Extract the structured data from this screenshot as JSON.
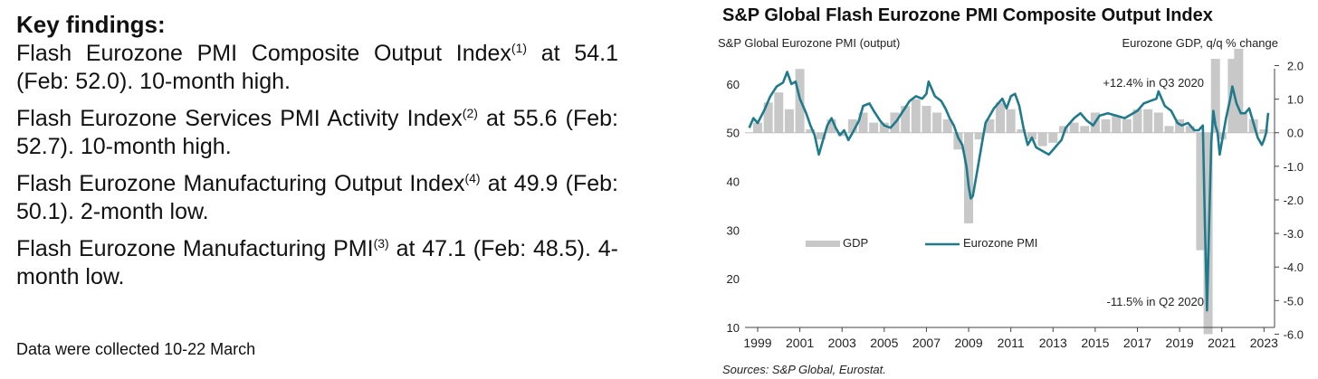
{
  "findings": {
    "heading": "Key findings:",
    "items": [
      {
        "text": "Flash Eurozone PMI Composite Output Index",
        "sup": "(1)",
        "rest": " at 54.1 (Feb: 52.0). 10-month high."
      },
      {
        "text": "Flash Eurozone Services PMI Activity Index",
        "sup": "(2)",
        "rest": " at 55.6 (Feb: 52.7). 10-month high."
      },
      {
        "text": "Flash Eurozone Manufacturing Output Index",
        "sup": "(4)",
        "rest": " at 49.9 (Feb: 50.1). 2-month low."
      },
      {
        "text": "Flash Eurozone Manufacturing PMI",
        "sup": "(3)",
        "rest": " at 47.1 (Feb: 48.5). 4-month low."
      }
    ],
    "note": "Data were collected 10-22 March"
  },
  "chart_data": {
    "type": "line+bar",
    "title": "S&P Global Flash Eurozone PMI Composite Output Index",
    "left_axis_label": "S&P Global  Eurozone PMI (output)",
    "right_axis_label": "Eurozone  GDP, q/q % change",
    "left_ylim": [
      10,
      65
    ],
    "left_ticks": [
      "10",
      "20",
      "30",
      "40",
      "50",
      "60"
    ],
    "right_ylim": [
      -6.0,
      2.5
    ],
    "right_ticks": [
      "-6.0",
      "-5.0",
      "-4.0",
      "-3.0",
      "-2.0",
      "-1.0",
      "0.0",
      "1.0",
      "2.0"
    ],
    "x_ticks": [
      "1999",
      "2001",
      "2003",
      "2005",
      "2007",
      "2009",
      "2011",
      "2013",
      "2015",
      "2017",
      "2019",
      "2021",
      "2023"
    ],
    "legend": {
      "gdp": "GDP",
      "pmi": "Eurozone PMI"
    },
    "annotations": {
      "high": "+12.4% in Q3 2020",
      "low": "-11.5% in Q2 2020"
    },
    "source": "Sources: S&P Global, Eurostat.",
    "colors": {
      "pmi": "#1f7a8c",
      "gdp": "#c8c8c8"
    },
    "pmi_series": [
      [
        1998.6,
        51.0
      ],
      [
        1998.8,
        53.0
      ],
      [
        1999.0,
        52.0
      ],
      [
        1999.3,
        54.5
      ],
      [
        1999.6,
        57.5
      ],
      [
        1999.9,
        59.5
      ],
      [
        2000.2,
        60.3
      ],
      [
        2000.4,
        62.5
      ],
      [
        2000.6,
        60.0
      ],
      [
        2000.8,
        60.5
      ],
      [
        2001.0,
        57.0
      ],
      [
        2001.3,
        54.0
      ],
      [
        2001.5,
        51.5
      ],
      [
        2001.7,
        49.5
      ],
      [
        2001.9,
        45.5
      ],
      [
        2002.1,
        48.5
      ],
      [
        2002.3,
        51.5
      ],
      [
        2002.5,
        53.0
      ],
      [
        2002.7,
        51.0
      ],
      [
        2002.9,
        49.5
      ],
      [
        2003.1,
        50.5
      ],
      [
        2003.3,
        48.5
      ],
      [
        2003.5,
        50.0
      ],
      [
        2003.8,
        52.5
      ],
      [
        2004.0,
        55.5
      ],
      [
        2004.3,
        56.0
      ],
      [
        2004.5,
        54.5
      ],
      [
        2004.8,
        52.5
      ],
      [
        2005.0,
        51.5
      ],
      [
        2005.3,
        51.0
      ],
      [
        2005.6,
        52.5
      ],
      [
        2005.9,
        54.5
      ],
      [
        2006.2,
        56.5
      ],
      [
        2006.5,
        57.5
      ],
      [
        2006.8,
        57.0
      ],
      [
        2007.0,
        58.0
      ],
      [
        2007.1,
        60.5
      ],
      [
        2007.4,
        57.5
      ],
      [
        2007.7,
        56.5
      ],
      [
        2007.9,
        55.0
      ],
      [
        2008.1,
        53.0
      ],
      [
        2008.3,
        51.5
      ],
      [
        2008.5,
        49.0
      ],
      [
        2008.7,
        47.5
      ],
      [
        2008.9,
        43.0
      ],
      [
        2009.0,
        39.0
      ],
      [
        2009.1,
        36.5
      ],
      [
        2009.2,
        37.0
      ],
      [
        2009.4,
        42.0
      ],
      [
        2009.6,
        47.0
      ],
      [
        2009.8,
        52.0
      ],
      [
        2010.0,
        53.5
      ],
      [
        2010.2,
        55.0
      ],
      [
        2010.4,
        56.0
      ],
      [
        2010.6,
        57.0
      ],
      [
        2010.8,
        55.0
      ],
      [
        2011.0,
        57.5
      ],
      [
        2011.2,
        58.0
      ],
      [
        2011.4,
        55.5
      ],
      [
        2011.6,
        51.0
      ],
      [
        2011.8,
        47.5
      ],
      [
        2012.0,
        49.0
      ],
      [
        2012.2,
        47.0
      ],
      [
        2012.4,
        46.5
      ],
      [
        2012.6,
        46.0
      ],
      [
        2012.8,
        45.5
      ],
      [
        2013.0,
        46.5
      ],
      [
        2013.2,
        47.5
      ],
      [
        2013.4,
        48.5
      ],
      [
        2013.6,
        51.0
      ],
      [
        2013.8,
        52.0
      ],
      [
        2014.0,
        53.0
      ],
      [
        2014.3,
        54.0
      ],
      [
        2014.6,
        52.5
      ],
      [
        2014.9,
        51.5
      ],
      [
        2015.2,
        53.5
      ],
      [
        2015.6,
        54.0
      ],
      [
        2016.0,
        53.5
      ],
      [
        2016.4,
        53.0
      ],
      [
        2016.8,
        54.0
      ],
      [
        2017.0,
        54.5
      ],
      [
        2017.3,
        56.0
      ],
      [
        2017.6,
        56.5
      ],
      [
        2017.9,
        57.0
      ],
      [
        2018.0,
        58.5
      ],
      [
        2018.3,
        55.5
      ],
      [
        2018.6,
        54.5
      ],
      [
        2018.9,
        52.0
      ],
      [
        2019.1,
        51.5
      ],
      [
        2019.4,
        52.0
      ],
      [
        2019.7,
        50.5
      ],
      [
        2019.9,
        50.5
      ],
      [
        2020.1,
        51.5
      ],
      [
        2020.2,
        31.0
      ],
      [
        2020.3,
        13.5
      ],
      [
        2020.4,
        31.0
      ],
      [
        2020.5,
        48.0
      ],
      [
        2020.6,
        54.5
      ],
      [
        2020.7,
        51.5
      ],
      [
        2020.8,
        50.0
      ],
      [
        2020.9,
        45.5
      ],
      [
        2021.0,
        48.0
      ],
      [
        2021.2,
        53.0
      ],
      [
        2021.4,
        57.0
      ],
      [
        2021.5,
        59.5
      ],
      [
        2021.7,
        56.0
      ],
      [
        2021.9,
        54.0
      ],
      [
        2022.1,
        54.0
      ],
      [
        2022.3,
        55.0
      ],
      [
        2022.5,
        52.0
      ],
      [
        2022.7,
        49.0
      ],
      [
        2022.9,
        47.5
      ],
      [
        2023.0,
        48.5
      ],
      [
        2023.1,
        50.0
      ],
      [
        2023.2,
        54.1
      ]
    ],
    "gdp_series": [
      [
        1999.0,
        0.3
      ],
      [
        1999.5,
        0.9
      ],
      [
        2000.0,
        1.2
      ],
      [
        2000.5,
        0.7
      ],
      [
        2001.0,
        1.9
      ],
      [
        2001.5,
        0.1
      ],
      [
        2002.0,
        -0.2
      ],
      [
        2002.5,
        0.4
      ],
      [
        2003.0,
        -0.1
      ],
      [
        2003.5,
        0.4
      ],
      [
        2004.0,
        0.6
      ],
      [
        2004.5,
        0.3
      ],
      [
        2005.0,
        0.3
      ],
      [
        2005.5,
        0.6
      ],
      [
        2006.0,
        0.8
      ],
      [
        2006.5,
        1.0
      ],
      [
        2007.0,
        0.8
      ],
      [
        2007.5,
        0.6
      ],
      [
        2008.0,
        0.4
      ],
      [
        2008.5,
        -0.5
      ],
      [
        2009.0,
        -2.7
      ],
      [
        2009.5,
        -0.2
      ],
      [
        2010.0,
        0.4
      ],
      [
        2010.5,
        0.9
      ],
      [
        2011.0,
        0.7
      ],
      [
        2011.5,
        0.1
      ],
      [
        2012.0,
        -0.2
      ],
      [
        2012.5,
        -0.4
      ],
      [
        2013.0,
        -0.3
      ],
      [
        2013.5,
        0.2
      ],
      [
        2014.0,
        0.3
      ],
      [
        2014.5,
        0.2
      ],
      [
        2015.0,
        0.6
      ],
      [
        2015.5,
        0.4
      ],
      [
        2016.0,
        0.5
      ],
      [
        2016.5,
        0.4
      ],
      [
        2017.0,
        0.7
      ],
      [
        2017.5,
        0.7
      ],
      [
        2018.0,
        0.6
      ],
      [
        2018.5,
        0.2
      ],
      [
        2019.0,
        0.4
      ],
      [
        2019.5,
        0.2
      ],
      [
        2020.0,
        -3.5
      ],
      [
        2020.35,
        -6.0
      ],
      [
        2020.7,
        2.2
      ],
      [
        2021.0,
        -0.2
      ],
      [
        2021.5,
        2.2
      ],
      [
        2021.8,
        2.5
      ],
      [
        2022.0,
        0.6
      ],
      [
        2022.5,
        0.4
      ],
      [
        2022.8,
        0.0
      ],
      [
        2023.0,
        0.1
      ]
    ]
  }
}
